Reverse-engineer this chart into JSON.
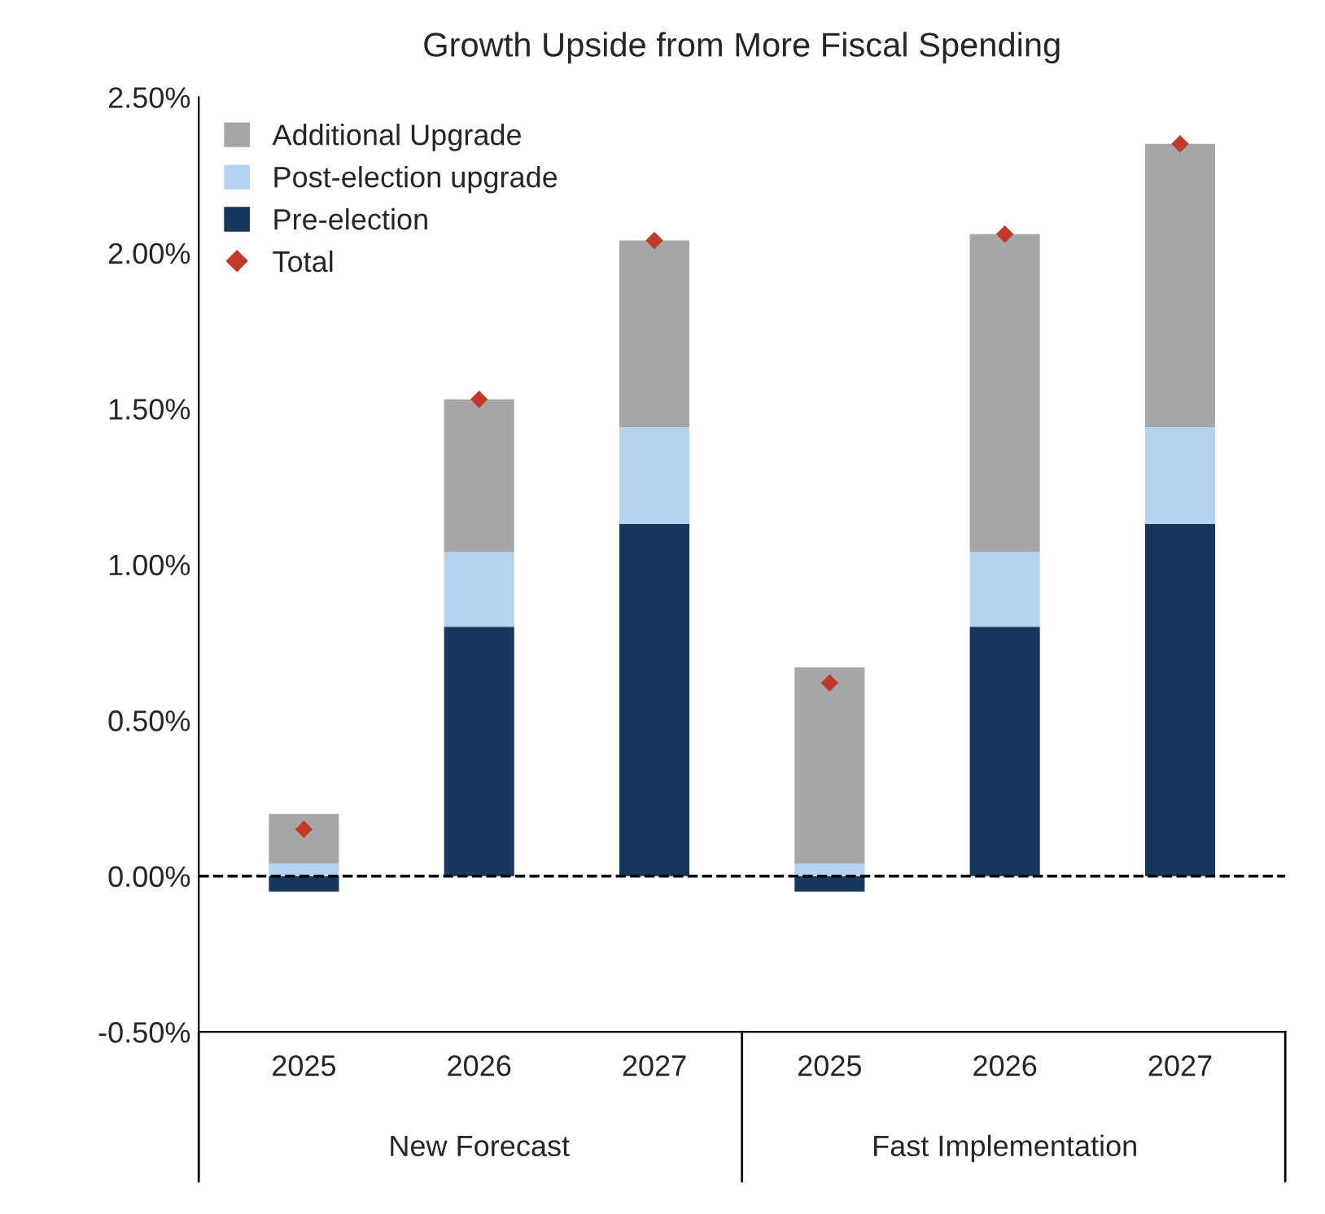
{
  "chart_data": {
    "type": "bar",
    "title": "Growth Upside from More Fiscal Spending",
    "stacked": true,
    "categories": [
      "2025",
      "2026",
      "2027",
      "2025",
      "2026",
      "2027"
    ],
    "series": [
      {
        "name": "Pre-election",
        "color": "#17375e",
        "values": [
          -0.05,
          0.8,
          1.13,
          -0.05,
          0.8,
          1.13
        ]
      },
      {
        "name": "Post-election upgrade",
        "color": "#b4d3ee",
        "values": [
          0.04,
          0.24,
          0.31,
          0.04,
          0.24,
          0.31
        ]
      },
      {
        "name": "Additional Upgrade",
        "color": "#a6a6a6",
        "values": [
          0.16,
          0.49,
          0.6,
          0.63,
          1.02,
          0.91
        ]
      },
      {
        "name": "Total",
        "type": "scatter",
        "marker": "diamond",
        "color": "#c0392b",
        "values": [
          0.15,
          1.53,
          2.04,
          0.62,
          2.06,
          2.35
        ]
      }
    ],
    "ylim": [
      -0.5,
      2.5
    ],
    "yticks": [
      {
        "value": -0.5,
        "label": "-0.50%"
      },
      {
        "value": 0,
        "label": "0.00%"
      },
      {
        "value": 0.5,
        "label": "0.50%"
      },
      {
        "value": 1,
        "label": "1.00%"
      },
      {
        "value": 1.5,
        "label": "1.50%"
      },
      {
        "value": 2,
        "label": "2.00%"
      },
      {
        "value": 2.5,
        "label": "2.50%"
      }
    ],
    "ref_lines": [
      {
        "axis": "y",
        "value": 0,
        "color": "#000000",
        "line_style": "dashed"
      }
    ],
    "annotations": [
      "New Forecast",
      "Fast Implementation"
    ],
    "grid": false,
    "legend": "top left"
  }
}
